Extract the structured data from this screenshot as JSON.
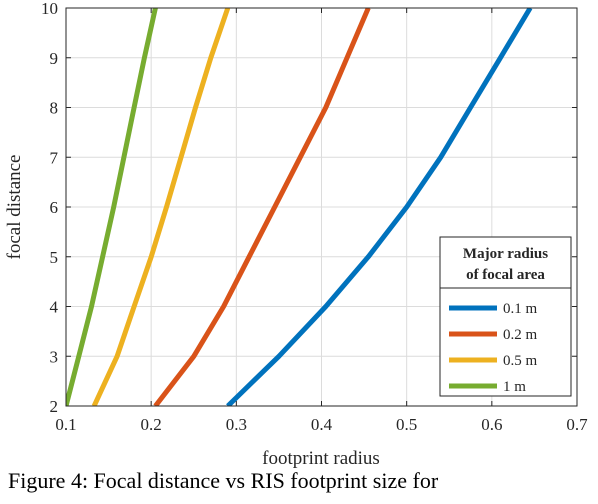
{
  "chart_data": {
    "type": "line",
    "xlabel": "footprint radius",
    "ylabel": "focal distance",
    "xlim": [
      0.1,
      0.7
    ],
    "ylim": [
      2,
      10
    ],
    "xticks": [
      "0.1",
      "0.2",
      "0.3",
      "0.4",
      "0.5",
      "0.6",
      "0.7"
    ],
    "yticks": [
      "2",
      "3",
      "4",
      "5",
      "6",
      "7",
      "8",
      "9",
      "10"
    ],
    "grid": true,
    "legend": {
      "title_line1": "Major radius",
      "title_line2": "of focal area",
      "placement": "bottom-right"
    },
    "series": [
      {
        "name": "0.1 m",
        "color": "#0072BD",
        "points": [
          [
            0.29,
            2
          ],
          [
            0.35,
            3
          ],
          [
            0.405,
            4
          ],
          [
            0.455,
            5
          ],
          [
            0.5,
            6
          ],
          [
            0.54,
            7
          ],
          [
            0.575,
            8
          ],
          [
            0.61,
            9
          ],
          [
            0.645,
            10
          ]
        ]
      },
      {
        "name": "0.2 m",
        "color": "#D95319",
        "points": [
          [
            0.205,
            2
          ],
          [
            0.25,
            3
          ],
          [
            0.285,
            4
          ],
          [
            0.315,
            5
          ],
          [
            0.345,
            6
          ],
          [
            0.375,
            7
          ],
          [
            0.405,
            8
          ],
          [
            0.43,
            9
          ],
          [
            0.455,
            10
          ]
        ]
      },
      {
        "name": "0.5 m",
        "color": "#EDB120",
        "points": [
          [
            0.133,
            2
          ],
          [
            0.16,
            3
          ],
          [
            0.18,
            4
          ],
          [
            0.2,
            5
          ],
          [
            0.218,
            6
          ],
          [
            0.235,
            7
          ],
          [
            0.252,
            8
          ],
          [
            0.27,
            9
          ],
          [
            0.29,
            10
          ]
        ]
      },
      {
        "name": "1 m",
        "color": "#77AC30",
        "points": [
          [
            0.1,
            2
          ],
          [
            0.115,
            3
          ],
          [
            0.13,
            4
          ],
          [
            0.143,
            5
          ],
          [
            0.156,
            6
          ],
          [
            0.168,
            7
          ],
          [
            0.18,
            8
          ],
          [
            0.192,
            9
          ],
          [
            0.205,
            10
          ]
        ]
      }
    ]
  },
  "caption": "Figure 4: Focal distance vs RIS footprint size for"
}
